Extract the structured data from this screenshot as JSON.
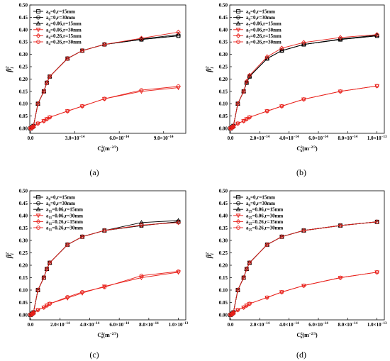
{
  "chart_data": [
    {
      "type": "line",
      "caption": "(a)",
      "ylabel_base": "β",
      "ylabel_sub": "i",
      "ylabel_sup": "2",
      "xlabel_base": "C",
      "xlabel_sub": "n",
      "xlabel_sup": "2",
      "xlabel_units": "(m",
      "xlabel_units_exp": "−2/3",
      "xlabel_units_end": ")",
      "xlim": [
        -5e-16,
        1.05e-13
      ],
      "ylim": [
        -0.02,
        0.5
      ],
      "xticks": [
        {
          "v": 0.0,
          "m": "0.0",
          "e": ""
        },
        {
          "v": 3e-14,
          "m": "3.0×10",
          "e": "−14"
        },
        {
          "v": 6e-14,
          "m": "6.0×10",
          "e": "−14"
        },
        {
          "v": 9e-14,
          "m": "9.0×10",
          "e": "−14"
        }
      ],
      "yticks": [
        "0.00",
        "0.05",
        "0.10",
        "0.15",
        "0.20",
        "0.25",
        "0.30",
        "0.35",
        "0.40",
        "0.45",
        "0.50"
      ],
      "legend": [
        {
          "base": "a",
          "sub": "0",
          "rest": "=0,r=15mm",
          "color": "#000000",
          "marker": "square"
        },
        {
          "base": "a",
          "sub": "0",
          "rest": "=0,r=30mm",
          "color": "#000000",
          "marker": "circle"
        },
        {
          "base": "a",
          "sub": "4",
          "rest": "=0.06,r=15mm",
          "color": "#000000",
          "marker": "triangle"
        },
        {
          "base": "a",
          "sub": "4",
          "rest": "=0.06,r=30mm",
          "color": "#e8201a",
          "marker": "triangle-down"
        },
        {
          "base": "a",
          "sub": "4",
          "rest": "=0.26,r=15mm",
          "color": "#e8201a",
          "marker": "diamond"
        },
        {
          "base": "a",
          "sub": "4",
          "rest": "=0.26,r=30mm",
          "color": "#e8201a",
          "marker": "circle"
        }
      ],
      "x": [
        0.0,
        1e-15,
        2e-15,
        5e-15,
        9e-15,
        1.1e-14,
        1.3e-14,
        2.5e-14,
        3.5e-14,
        5e-14,
        7.5e-14,
        1e-13
      ],
      "series": [
        {
          "values": [
            0.0,
            0.005,
            0.01,
            0.1,
            0.15,
            0.185,
            0.21,
            0.283,
            0.315,
            0.34,
            0.36,
            0.375
          ]
        },
        {
          "values": [
            0.0,
            0.005,
            0.01,
            0.1,
            0.15,
            0.185,
            0.21,
            0.283,
            0.315,
            0.34,
            0.36,
            0.375
          ]
        },
        {
          "values": [
            0.0,
            0.005,
            0.01,
            0.1,
            0.15,
            0.185,
            0.21,
            0.283,
            0.315,
            0.34,
            0.362,
            0.38
          ]
        },
        {
          "values": [
            0.0,
            0.003,
            0.006,
            0.02,
            0.03,
            0.038,
            0.045,
            0.07,
            0.09,
            0.12,
            0.15,
            0.165
          ]
        },
        {
          "values": [
            0.0,
            0.005,
            0.01,
            0.1,
            0.15,
            0.185,
            0.21,
            0.283,
            0.315,
            0.34,
            0.365,
            0.39
          ]
        },
        {
          "values": [
            0.0,
            0.003,
            0.006,
            0.02,
            0.03,
            0.038,
            0.045,
            0.07,
            0.09,
            0.12,
            0.155,
            0.17
          ]
        }
      ]
    },
    {
      "type": "line",
      "caption": "(b)",
      "ylabel_base": "β",
      "ylabel_sub": "i",
      "ylabel_sup": "2",
      "xlabel_base": "C",
      "xlabel_sub": "n",
      "xlabel_sup": "2",
      "xlabel_units": "(m",
      "xlabel_units_exp": "−2/3",
      "xlabel_units_end": ")",
      "xlim": [
        -5e-16,
        1.05e-13
      ],
      "ylim": [
        -0.02,
        0.5
      ],
      "xticks": [
        {
          "v": 0.0,
          "m": "0.0",
          "e": ""
        },
        {
          "v": 2e-14,
          "m": "2.0×10",
          "e": "−14"
        },
        {
          "v": 4e-14,
          "m": "4.0×10",
          "e": "−14"
        },
        {
          "v": 6e-14,
          "m": "6.0×10",
          "e": "−14"
        },
        {
          "v": 8e-14,
          "m": "8.0×10",
          "e": "−14"
        },
        {
          "v": 1e-13,
          "m": "1.0×10",
          "e": "−13"
        }
      ],
      "yticks": [
        "0.00",
        "0.05",
        "0.10",
        "0.15",
        "0.20",
        "0.25",
        "0.30",
        "0.35",
        "0.40",
        "0.45",
        "0.50"
      ],
      "legend": [
        {
          "base": "a",
          "sub": "0",
          "rest": "=0,r=15mm",
          "color": "#000000",
          "marker": "square"
        },
        {
          "base": "a",
          "sub": "0",
          "rest": "=0,r=30mm",
          "color": "#000000",
          "marker": "circle"
        },
        {
          "base": "a",
          "sub": "7",
          "rest": "=0.06,r=15mm",
          "color": "#000000",
          "marker": "triangle"
        },
        {
          "base": "a",
          "sub": "7",
          "rest": "=0.06,r=30mm",
          "color": "#e8201a",
          "marker": "triangle-down"
        },
        {
          "base": "a",
          "sub": "7",
          "rest": "=0.26,r=15mm",
          "color": "#e8201a",
          "marker": "diamond"
        },
        {
          "base": "a",
          "sub": "7",
          "rest": "=0.26,r=30mm",
          "color": "#e8201a",
          "marker": "circle"
        }
      ],
      "x": [
        0.0,
        1e-15,
        2e-15,
        5e-15,
        9e-15,
        1.1e-14,
        1.3e-14,
        2.5e-14,
        3.5e-14,
        5e-14,
        7.5e-14,
        1e-13
      ],
      "series": [
        {
          "values": [
            0.0,
            0.005,
            0.01,
            0.1,
            0.15,
            0.185,
            0.21,
            0.283,
            0.315,
            0.34,
            0.36,
            0.375
          ]
        },
        {
          "values": [
            0.0,
            0.005,
            0.01,
            0.1,
            0.15,
            0.185,
            0.21,
            0.283,
            0.315,
            0.34,
            0.36,
            0.375
          ]
        },
        {
          "values": [
            0.0,
            0.005,
            0.01,
            0.1,
            0.15,
            0.185,
            0.21,
            0.283,
            0.315,
            0.34,
            0.362,
            0.378
          ]
        },
        {
          "values": [
            0.0,
            0.003,
            0.006,
            0.02,
            0.03,
            0.038,
            0.045,
            0.07,
            0.09,
            0.118,
            0.15,
            0.172
          ]
        },
        {
          "values": [
            0.0,
            0.005,
            0.01,
            0.1,
            0.15,
            0.19,
            0.215,
            0.29,
            0.325,
            0.348,
            0.368,
            0.38
          ]
        },
        {
          "values": [
            0.0,
            0.003,
            0.006,
            0.02,
            0.03,
            0.038,
            0.045,
            0.07,
            0.09,
            0.118,
            0.15,
            0.172
          ]
        }
      ]
    },
    {
      "type": "line",
      "caption": "(c)",
      "ylabel_base": "β",
      "ylabel_sub": "i",
      "ylabel_sup": "2",
      "xlabel_base": "C",
      "xlabel_sub": "n",
      "xlabel_sup": "2",
      "xlabel_units": "(m",
      "xlabel_units_exp": "−2/3",
      "xlabel_units_end": ")",
      "xlim": [
        -5e-16,
        1.05e-13
      ],
      "ylim": [
        -0.02,
        0.5
      ],
      "xticks": [
        {
          "v": 0.0,
          "m": "0.0",
          "e": ""
        },
        {
          "v": 2e-14,
          "m": "2.0×10",
          "e": "−14"
        },
        {
          "v": 4e-14,
          "m": "4.0×10",
          "e": "−14"
        },
        {
          "v": 6e-14,
          "m": "6.0×10",
          "e": "−14"
        },
        {
          "v": 8e-14,
          "m": "8.0×10",
          "e": "−14"
        },
        {
          "v": 1e-13,
          "m": "1.0×10",
          "e": "−13"
        }
      ],
      "yticks": [
        "0.00",
        "0.05",
        "0.10",
        "0.15",
        "0.20",
        "0.25",
        "0.30",
        "0.35",
        "0.40",
        "0.45",
        "0.50"
      ],
      "legend": [
        {
          "base": "a",
          "sub": "0",
          "rest": "=0,r=15mm",
          "color": "#000000",
          "marker": "square"
        },
        {
          "base": "a",
          "sub": "0",
          "rest": "=0,r=30mm",
          "color": "#000000",
          "marker": "circle"
        },
        {
          "base": "a",
          "sub": "11",
          "rest": "=0.06,r=15mm",
          "color": "#000000",
          "marker": "triangle"
        },
        {
          "base": "a",
          "sub": "11",
          "rest": "=0.06,r=30mm",
          "color": "#e8201a",
          "marker": "triangle-down"
        },
        {
          "base": "a",
          "sub": "11",
          "rest": "=0.26,r=15mm",
          "color": "#e8201a",
          "marker": "diamond"
        },
        {
          "base": "a",
          "sub": "11",
          "rest": "=0.26,r=30mm",
          "color": "#e8201a",
          "marker": "circle"
        }
      ],
      "x": [
        0.0,
        1e-15,
        2e-15,
        5e-15,
        9e-15,
        1.1e-14,
        1.3e-14,
        2.5e-14,
        3.5e-14,
        5e-14,
        7.5e-14,
        1e-13
      ],
      "series": [
        {
          "values": [
            0.0,
            0.005,
            0.01,
            0.1,
            0.15,
            0.185,
            0.21,
            0.283,
            0.315,
            0.34,
            0.36,
            0.375
          ]
        },
        {
          "values": [
            0.0,
            0.005,
            0.01,
            0.1,
            0.15,
            0.185,
            0.21,
            0.283,
            0.315,
            0.34,
            0.36,
            0.375
          ]
        },
        {
          "values": [
            0.0,
            0.005,
            0.01,
            0.1,
            0.15,
            0.185,
            0.21,
            0.283,
            0.315,
            0.34,
            0.372,
            0.38
          ]
        },
        {
          "values": [
            0.0,
            0.003,
            0.006,
            0.02,
            0.03,
            0.038,
            0.045,
            0.068,
            0.088,
            0.115,
            0.15,
            0.172
          ]
        },
        {
          "values": [
            0.0,
            0.005,
            0.01,
            0.1,
            0.15,
            0.185,
            0.21,
            0.283,
            0.315,
            0.34,
            0.362,
            0.372
          ]
        },
        {
          "values": [
            0.0,
            0.003,
            0.006,
            0.02,
            0.03,
            0.038,
            0.045,
            0.072,
            0.092,
            0.112,
            0.158,
            0.175
          ]
        }
      ]
    },
    {
      "type": "line",
      "caption": "(d)",
      "ylabel_base": "β",
      "ylabel_sub": "i",
      "ylabel_sup": "2",
      "xlabel_base": "C",
      "xlabel_sub": "n",
      "xlabel_sup": "2",
      "xlabel_units": "(m",
      "xlabel_units_exp": "−2/3",
      "xlabel_units_end": ")",
      "xlim": [
        -5e-16,
        1.05e-13
      ],
      "ylim": [
        -0.02,
        0.5
      ],
      "xticks": [
        {
          "v": 0.0,
          "m": "0.0",
          "e": ""
        },
        {
          "v": 2e-14,
          "m": "2.0×10",
          "e": "−14"
        },
        {
          "v": 4e-14,
          "m": "4.0×10",
          "e": "−14"
        },
        {
          "v": 6e-14,
          "m": "6.0×10",
          "e": "−14"
        },
        {
          "v": 8e-14,
          "m": "8.0×10",
          "e": "−14"
        },
        {
          "v": 1e-13,
          "m": "1.0×10",
          "e": "−13"
        }
      ],
      "yticks": [
        "0.00",
        "0.05",
        "0.10",
        "0.15",
        "0.20",
        "0.25",
        "0.30",
        "0.35",
        "0.40",
        "0.45",
        "0.50"
      ],
      "legend": [
        {
          "base": "a",
          "sub": "0",
          "rest": "=0,r=15mm",
          "color": "#000000",
          "marker": "square"
        },
        {
          "base": "a",
          "sub": "0",
          "rest": "=0,r=30mm",
          "color": "#000000",
          "marker": "circle"
        },
        {
          "base": "a",
          "sub": "25",
          "rest": "=0.06,r=15mm",
          "color": "#000000",
          "marker": "triangle"
        },
        {
          "base": "a",
          "sub": "25",
          "rest": "=0.06,r=30mm",
          "color": "#e8201a",
          "marker": "triangle-down"
        },
        {
          "base": "a",
          "sub": "25",
          "rest": "=0.26,r=15mm",
          "color": "#e8201a",
          "marker": "diamond"
        },
        {
          "base": "a",
          "sub": "25",
          "rest": "=0.26,r=30mm",
          "color": "#e8201a",
          "marker": "circle"
        }
      ],
      "x": [
        0.0,
        1e-15,
        2e-15,
        5e-15,
        9e-15,
        1.1e-14,
        1.3e-14,
        2.5e-14,
        3.5e-14,
        5e-14,
        7.5e-14,
        1e-13
      ],
      "series": [
        {
          "values": [
            0.0,
            0.005,
            0.01,
            0.1,
            0.15,
            0.185,
            0.21,
            0.283,
            0.315,
            0.34,
            0.36,
            0.375
          ]
        },
        {
          "values": [
            0.0,
            0.005,
            0.01,
            0.1,
            0.15,
            0.185,
            0.21,
            0.283,
            0.315,
            0.34,
            0.36,
            0.375
          ]
        },
        {
          "values": [
            0.0,
            0.005,
            0.01,
            0.1,
            0.15,
            0.185,
            0.21,
            0.283,
            0.315,
            0.34,
            0.36,
            0.375
          ]
        },
        {
          "values": [
            0.0,
            0.003,
            0.006,
            0.02,
            0.03,
            0.038,
            0.045,
            0.07,
            0.092,
            0.118,
            0.15,
            0.172
          ]
        },
        {
          "values": [
            0.0,
            0.005,
            0.01,
            0.1,
            0.15,
            0.185,
            0.21,
            0.283,
            0.315,
            0.34,
            0.36,
            0.375
          ]
        },
        {
          "values": [
            0.0,
            0.003,
            0.006,
            0.02,
            0.03,
            0.038,
            0.045,
            0.07,
            0.092,
            0.118,
            0.15,
            0.172
          ]
        }
      ]
    }
  ]
}
